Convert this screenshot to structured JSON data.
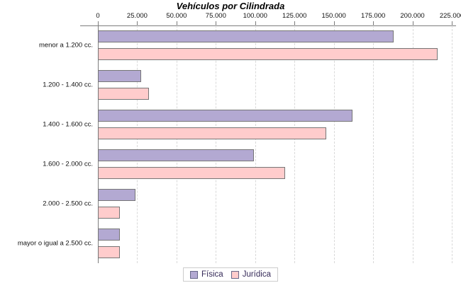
{
  "chart_data": {
    "type": "bar",
    "orientation": "horizontal",
    "title": "Vehículos por Cilindrada",
    "categories": [
      "menor a 1.200 cc.",
      "1.200 - 1.400 cc.",
      "1.400 - 1.600 cc.",
      "1.600 - 2.000 cc.",
      "2.000 - 2.500 cc.",
      "mayor o igual a 2.500 cc."
    ],
    "series": [
      {
        "name": "Física",
        "color": "#b3a9d2",
        "values": [
          188000,
          27500,
          162000,
          99000,
          24000,
          14000
        ]
      },
      {
        "name": "Jurídica",
        "color": "#ffcccc",
        "values": [
          216000,
          32500,
          145000,
          119000,
          14000,
          14000
        ]
      }
    ],
    "x_axis": {
      "min": 0,
      "max": 225000,
      "tick_interval": 25000,
      "tick_labels": [
        "0",
        "25.000",
        "50.000",
        "75.000",
        "100.000",
        "125.000",
        "150.000",
        "175.000",
        "200.000",
        "225.000"
      ],
      "position": "top",
      "gridlines": "dashed"
    },
    "legend": {
      "position": "bottom",
      "entries": [
        "Física",
        "Jurídica"
      ],
      "text_color": "#352a58"
    }
  }
}
